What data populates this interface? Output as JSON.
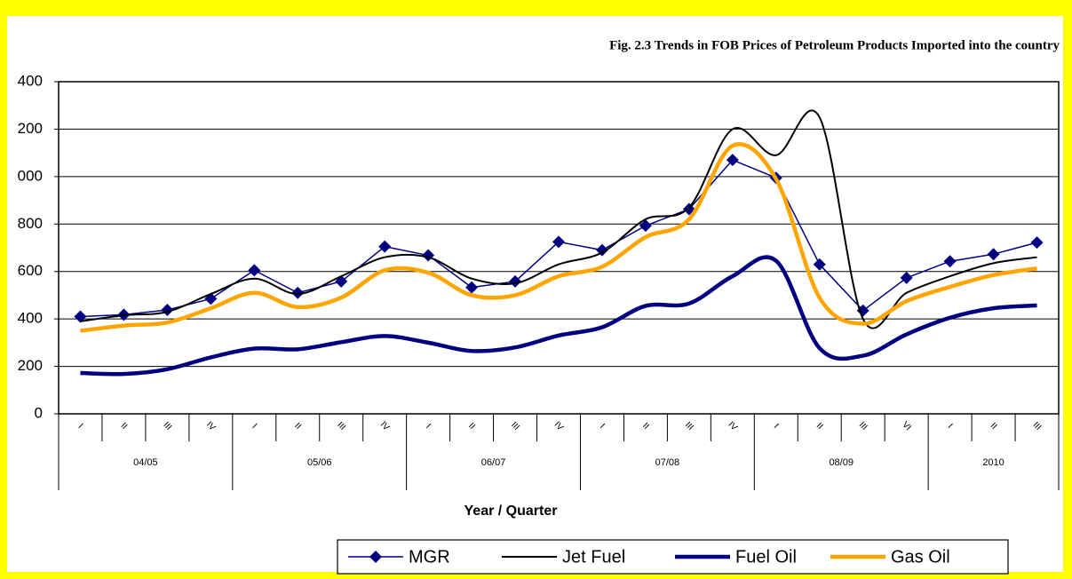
{
  "chart_data": {
    "type": "line",
    "title": "Fig. 2.3 Trends in  FOB Prices of Petroleum Products Imported into the country",
    "x_label": "Year / Quarter",
    "groups": [
      {
        "label": "04/05",
        "categories": [
          "I",
          "II",
          "III",
          "IV"
        ]
      },
      {
        "label": "05/06",
        "categories": [
          "I",
          "II",
          "III",
          "IV"
        ]
      },
      {
        "label": "06/07",
        "categories": [
          "I",
          "II",
          "III",
          "IV"
        ]
      },
      {
        "label": "07/08",
        "categories": [
          "I",
          "II",
          "III",
          "IV"
        ]
      },
      {
        "label": "08/09",
        "categories": [
          "I",
          "II",
          "III",
          "VI"
        ]
      },
      {
        "label": "2010",
        "categories": [
          "I",
          "II",
          "III"
        ]
      }
    ],
    "ylim": [
      0,
      1400
    ],
    "yticks": [
      0,
      {
        "value": 200,
        "label": "200"
      },
      {
        "value": 400,
        "label": "400"
      },
      {
        "value": 600,
        "label": "600"
      },
      {
        "value": 800,
        "label": "800"
      },
      {
        "value": 1000,
        "label": "000"
      },
      {
        "value": 1200,
        "label": "200"
      },
      {
        "value": 1400,
        "label": "400"
      }
    ],
    "grid": true,
    "series": [
      {
        "name": "MGR",
        "color": "#000080",
        "smooth": false,
        "marker": "diamond",
        "width": 1.5,
        "values": [
          410,
          418,
          438,
          485,
          605,
          510,
          558,
          705,
          668,
          533,
          558,
          725,
          690,
          793,
          863,
          1070,
          995,
          630,
          435,
          573,
          643,
          673,
          722
        ]
      },
      {
        "name": "Jet Fuel",
        "color": "#000000",
        "smooth": true,
        "width": 2,
        "values": [
          390,
          415,
          430,
          505,
          570,
          505,
          580,
          660,
          660,
          570,
          550,
          630,
          680,
          820,
          870,
          1200,
          1090,
          1250,
          400,
          510,
          580,
          635,
          660
        ]
      },
      {
        "name": "Fuel Oil",
        "color": "#000080",
        "smooth": true,
        "width": 4.5,
        "values": [
          172,
          168,
          188,
          238,
          275,
          272,
          302,
          328,
          300,
          265,
          280,
          330,
          365,
          455,
          465,
          580,
          645,
          277,
          245,
          335,
          405,
          445,
          457
        ]
      },
      {
        "name": "Gas Oil",
        "color": "#ffa500",
        "smooth": true,
        "width": 4.5,
        "values": [
          350,
          372,
          385,
          445,
          510,
          450,
          490,
          605,
          595,
          500,
          500,
          580,
          620,
          745,
          820,
          1130,
          990,
          490,
          380,
          475,
          535,
          585,
          613
        ]
      }
    ]
  }
}
